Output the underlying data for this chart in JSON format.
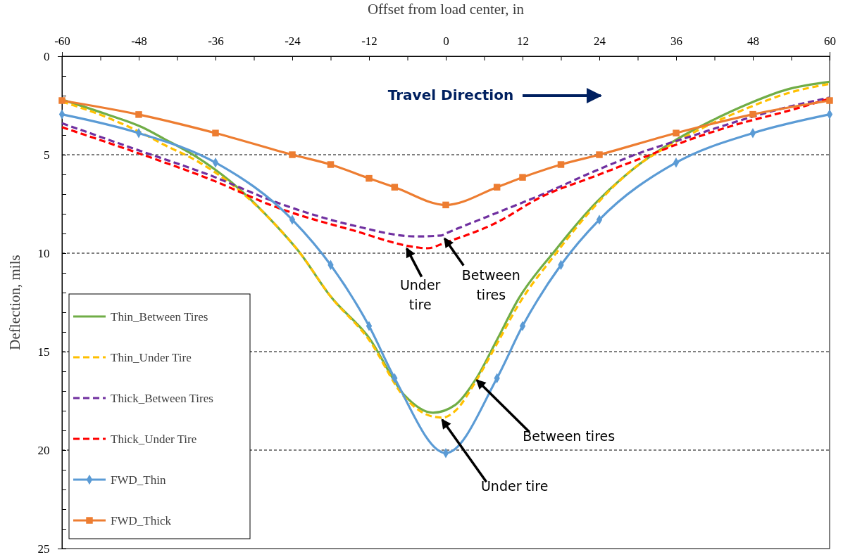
{
  "chart_data": {
    "type": "line",
    "xlabel": "Offset from load center, in",
    "ylabel": "Deflection, mils",
    "xlim": [
      -60,
      60
    ],
    "xticks": [
      -60,
      {
        "value": -54,
        "label": null
      },
      -48,
      {
        "value": -42,
        "label": null
      },
      -36,
      {
        "value": -30,
        "label": null
      },
      -24,
      {
        "value": -18,
        "label": null
      },
      -12,
      {
        "value": -6,
        "label": null
      },
      0,
      {
        "value": 6,
        "label": null
      },
      12,
      {
        "value": 18,
        "label": null
      },
      24,
      {
        "value": 30,
        "label": null
      },
      36,
      {
        "value": 42,
        "label": null
      },
      48,
      {
        "value": 54,
        "label": null
      },
      60
    ],
    "ylim": [
      25,
      0
    ],
    "yticks": [
      0,
      {
        "value": 1,
        "label": null
      },
      {
        "value": 2,
        "label": null
      },
      {
        "value": 3,
        "label": null
      },
      {
        "value": 4,
        "label": null
      },
      5,
      {
        "value": 6,
        "label": null
      },
      {
        "value": 7,
        "label": null
      },
      {
        "value": 8,
        "label": null
      },
      {
        "value": 9,
        "label": null
      },
      10,
      {
        "value": 11,
        "label": null
      },
      {
        "value": 12,
        "label": null
      },
      {
        "value": 13,
        "label": null
      },
      {
        "value": 14,
        "label": null
      },
      15,
      {
        "value": 16,
        "label": null
      },
      {
        "value": 17,
        "label": null
      },
      {
        "value": 18,
        "label": null
      },
      {
        "value": 19,
        "label": null
      },
      20,
      {
        "value": 21,
        "label": null
      },
      {
        "value": 22,
        "label": null
      },
      {
        "value": 23,
        "label": null
      },
      {
        "value": 24,
        "label": null
      },
      25
    ],
    "grid": "y",
    "legend": "bottom left",
    "series": [
      {
        "name": "Thin_Between Tires",
        "color": "#70ad47",
        "line_style": "solid",
        "marker": "none",
        "x": [
          -60,
          -53,
          -47.5,
          -44,
          -39,
          -33.5,
          -26.5,
          -23,
          -18,
          -12,
          -6.5,
          -2,
          1.5,
          4.7,
          8,
          11.4,
          17,
          23.6,
          29,
          35.7,
          41.7,
          47.4,
          53.2,
          60
        ],
        "values": [
          2.2,
          2.95,
          3.6,
          4.2,
          5.1,
          6.4,
          8.6,
          9.9,
          12.2,
          14.3,
          17.2,
          18.1,
          17.7,
          16.4,
          14.4,
          12.3,
          9.9,
          7.4,
          5.8,
          4.3,
          3.25,
          2.4,
          1.7,
          1.3
        ]
      },
      {
        "name": "Thin_Under Tire",
        "color": "#ffc000",
        "line_style": "dashed",
        "marker": "none",
        "x": [
          -60,
          -53,
          -47.5,
          -44,
          -39,
          -33.5,
          -26.5,
          -23,
          -18,
          -12,
          -6.5,
          -2,
          -0.5,
          1.5,
          4.7,
          8,
          11.4,
          17,
          23.6,
          29,
          35.7,
          41.7,
          47.4,
          53.2,
          60
        ],
        "values": [
          2.3,
          3.1,
          3.9,
          4.5,
          5.3,
          6.5,
          8.6,
          9.9,
          12.2,
          14.4,
          17.3,
          18.3,
          18.35,
          18,
          16.5,
          14.6,
          12.6,
          10.1,
          7.5,
          5.8,
          4.4,
          3.4,
          2.6,
          1.9,
          1.4
        ]
      },
      {
        "name": "Thick_Between Tires",
        "color": "#7030a0",
        "line_style": "dashed",
        "marker": "none",
        "x": [
          -60,
          -48.7,
          -37.2,
          -25.8,
          -14.4,
          -4.6,
          -0.7,
          0,
          7.6,
          15.2,
          22.8,
          30.4,
          38,
          45.6,
          53.2,
          60
        ],
        "values": [
          3.4,
          4.7,
          6.0,
          7.5,
          8.6,
          9.15,
          9.1,
          9.0,
          8.0,
          7.0,
          5.9,
          4.9,
          4.1,
          3.3,
          2.6,
          2.1
        ]
      },
      {
        "name": "Thick_Under Tire",
        "color": "#ff0000",
        "line_style": "dashed",
        "marker": "none",
        "x": [
          -60,
          -48.7,
          -37.2,
          -25.8,
          -14.4,
          -4.6,
          -2.9,
          0,
          7.6,
          15.2,
          22.8,
          30.4,
          38,
          45.6,
          53.2,
          60
        ],
        "values": [
          3.6,
          4.85,
          6.2,
          7.75,
          8.85,
          9.7,
          9.75,
          9.45,
          8.5,
          7.1,
          6.15,
          5.2,
          4.25,
          3.45,
          2.8,
          2.15
        ]
      },
      {
        "name": "FWD_Thin",
        "color": "#5b9bd5",
        "line_style": "solid",
        "marker": "diamond",
        "x": [
          -60,
          -48,
          -36,
          -24,
          -18,
          -12,
          -8,
          0,
          8,
          12,
          18,
          24,
          36,
          48,
          60
        ],
        "values": [
          2.95,
          3.9,
          5.4,
          8.3,
          10.6,
          13.7,
          16.35,
          20.15,
          16.35,
          13.7,
          10.6,
          8.3,
          5.4,
          3.9,
          2.95
        ]
      },
      {
        "name": "FWD_Thick",
        "color": "#ed7d31",
        "line_style": "solid",
        "marker": "square",
        "x": [
          -60,
          -48,
          -36,
          -24,
          -18,
          -12,
          -8,
          0,
          8,
          12,
          18,
          24,
          36,
          48,
          60
        ],
        "values": [
          2.25,
          2.96,
          3.9,
          5.0,
          5.5,
          6.2,
          6.65,
          7.55,
          6.65,
          6.15,
          5.5,
          5.0,
          3.9,
          2.95,
          2.25
        ]
      }
    ],
    "annotations": [
      "Travel Direction",
      {
        "text": "Under tire",
        "x": -6.2,
        "y": 9.7
      },
      {
        "text": "Between tires",
        "x": -0.3,
        "y": 9.2
      },
      {
        "text": "Between tires",
        "x": 4.7,
        "y": 16.4
      },
      {
        "text": "Under tire",
        "x": -0.7,
        "y": 18.4
      }
    ]
  }
}
